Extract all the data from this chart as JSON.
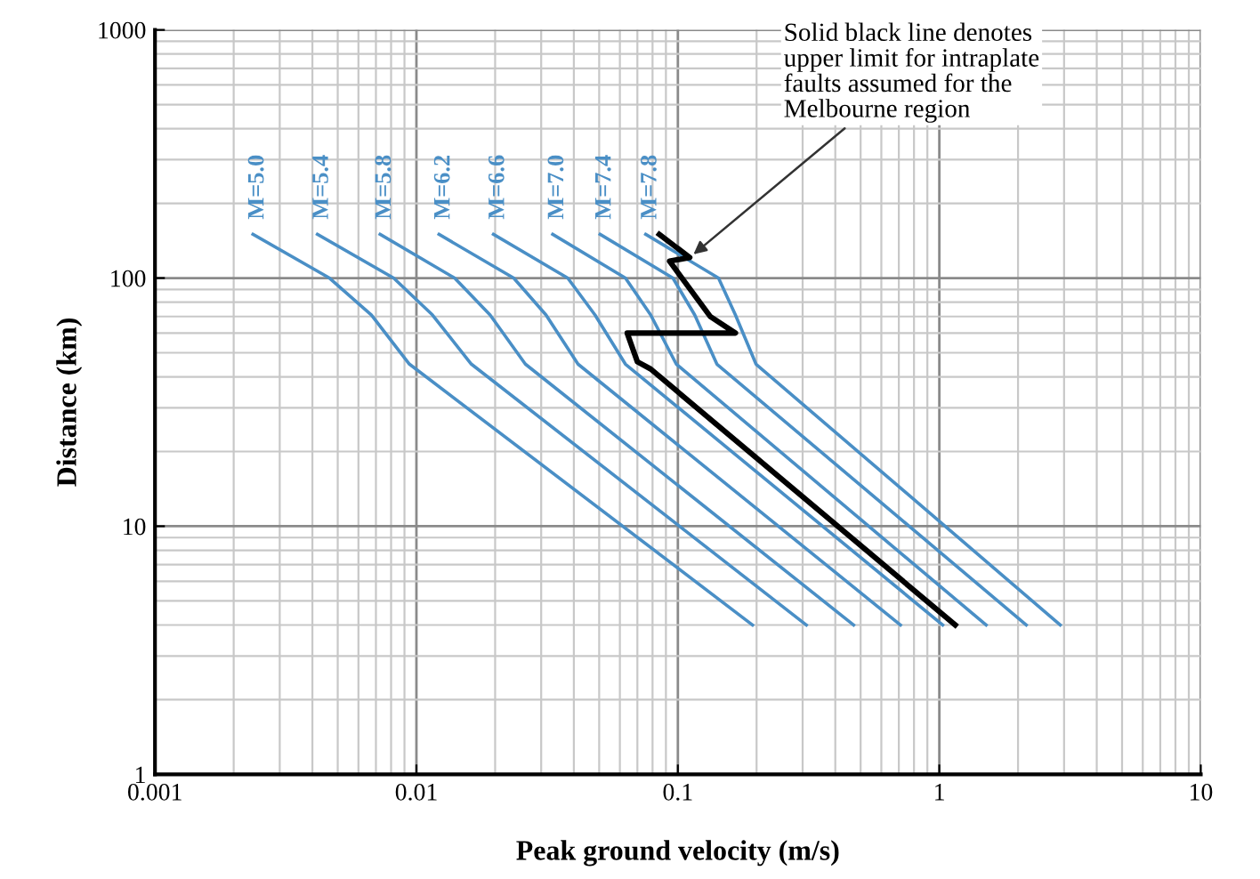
{
  "chart_data": {
    "type": "line",
    "xlabel": "Peak ground velocity (m/s)",
    "ylabel": "Distance (km)",
    "log": "xy",
    "grid": true,
    "xlim": [
      0.001,
      10
    ],
    "ylim": [
      1,
      1000
    ],
    "xticks": [
      0.001,
      0.01,
      0.1,
      1,
      10
    ],
    "yticks": [
      1,
      10,
      100,
      1000
    ],
    "series": [
      {
        "name": "M=5.0",
        "color": "#4a8fc6",
        "x": [
          0.00237,
          0.00465,
          0.00673,
          0.0094,
          0.193
        ],
        "values": [
          150,
          100,
          71,
          45,
          4
        ]
      },
      {
        "name": "M=5.4",
        "color": "#4a8fc6",
        "x": [
          0.00418,
          0.00818,
          0.01152,
          0.01622,
          0.31
        ],
        "values": [
          150,
          100,
          71,
          45,
          4
        ]
      },
      {
        "name": "M=5.8",
        "color": "#4a8fc6",
        "x": [
          0.00726,
          0.014,
          0.01913,
          0.0261,
          0.47
        ],
        "values": [
          150,
          100,
          71,
          45,
          4
        ]
      },
      {
        "name": "M=6.2",
        "color": "#4a8fc6",
        "x": [
          0.0122,
          0.02355,
          0.0313,
          0.0415,
          0.71
        ],
        "values": [
          150,
          100,
          71,
          45,
          4
        ]
      },
      {
        "name": "M=6.6",
        "color": "#4a8fc6",
        "x": [
          0.0197,
          0.0379,
          0.0482,
          0.063,
          1.03
        ],
        "values": [
          150,
          100,
          71,
          45,
          4
        ]
      },
      {
        "name": "M=7.0",
        "color": "#4a8fc6",
        "x": [
          0.0332,
          0.063,
          0.0787,
          0.0986,
          1.51
        ],
        "values": [
          150,
          100,
          71,
          45,
          4
        ]
      },
      {
        "name": "M=7.4",
        "color": "#4a8fc6",
        "x": [
          0.0504,
          0.0957,
          0.116,
          0.141,
          2.15
        ],
        "values": [
          150,
          100,
          71,
          45,
          4
        ]
      },
      {
        "name": "M=7.8",
        "color": "#4a8fc6",
        "x": [
          0.0753,
          0.143,
          0.166,
          0.199,
          2.9
        ],
        "values": [
          150,
          100,
          71,
          45,
          4
        ]
      },
      {
        "color": "#000000",
        "x": [
          0.0849,
          0.111,
          0.0929,
          0.133,
          0.166,
          0.064,
          0.07,
          0.0787,
          1.15
        ],
        "values": [
          150,
          121,
          117,
          70,
          60,
          60,
          46,
          43,
          4
        ]
      }
    ],
    "annotations": [
      {
        "text": "Solid black line denotes\nupper limit for intraplate\nfaults assumed for the\nMelbourne region",
        "x": 0.111,
        "y": 121
      }
    ]
  }
}
